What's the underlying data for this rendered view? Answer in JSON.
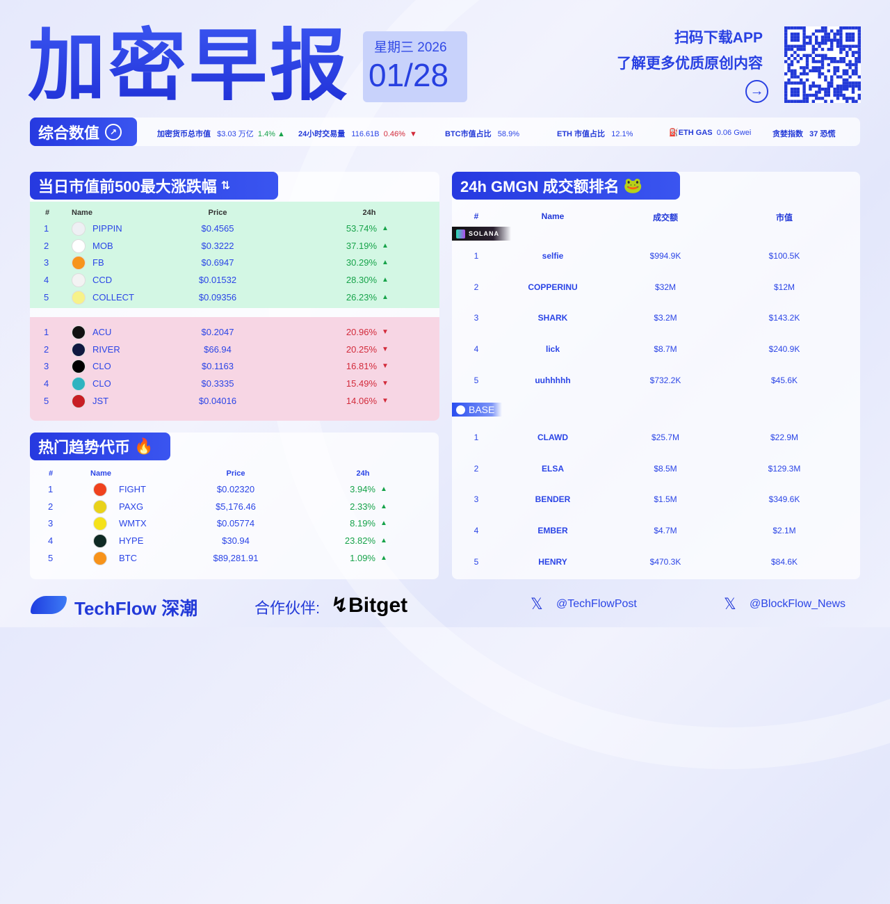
{
  "header": {
    "title": "加密早报",
    "weekday_year": "星期三 2026",
    "date": "01/28",
    "promo_line1": "扫码下载APP",
    "promo_line2": "了解更多优质原创内容"
  },
  "stats": {
    "label": "综合数值",
    "items": [
      {
        "label": "加密货币总市值",
        "value": "$3.03 万亿",
        "change": "1.4%",
        "dir": "up"
      },
      {
        "label": "24小时交易量",
        "value": "116.61B",
        "change": "0.46%",
        "dir": "down"
      },
      {
        "label": "BTC市值占比",
        "value": "58.9%"
      },
      {
        "label": "ETH 市值占比",
        "value": "12.1%"
      },
      {
        "label": "ETH GAS",
        "value": "0.06 Gwei"
      },
      {
        "label": "贪婪指数",
        "value": "37 恐慌"
      }
    ]
  },
  "movers": {
    "title": "当日市值前500最大涨跌幅",
    "headers": [
      "#",
      "Name",
      "Price",
      "24h"
    ],
    "gainers": [
      {
        "rank": "1",
        "name": "PIPPIN",
        "price": "$0.4565",
        "change": "53.74%",
        "icon_color": "#eef0f4"
      },
      {
        "rank": "2",
        "name": "MOB",
        "price": "$0.3222",
        "change": "37.19%",
        "icon_color": "#ffffff"
      },
      {
        "rank": "3",
        "name": "FB",
        "price": "$0.6947",
        "change": "30.29%",
        "icon_color": "#f7941d"
      },
      {
        "rank": "4",
        "name": "CCD",
        "price": "$0.01532",
        "change": "28.30%",
        "icon_color": "#f3f3f3"
      },
      {
        "rank": "5",
        "name": "COLLECT",
        "price": "$0.09356",
        "change": "26.23%",
        "icon_color": "#f7f28a"
      }
    ],
    "losers": [
      {
        "rank": "1",
        "name": "ACU",
        "price": "$0.2047",
        "change": "20.96%",
        "icon_color": "#111111"
      },
      {
        "rank": "2",
        "name": "RIVER",
        "price": "$66.94",
        "change": "20.25%",
        "icon_color": "#101840"
      },
      {
        "rank": "3",
        "name": "CLO",
        "price": "$0.1163",
        "change": "16.81%",
        "icon_color": "#000000"
      },
      {
        "rank": "4",
        "name": "CLO",
        "price": "$0.3335",
        "change": "15.49%",
        "icon_color": "#2fb3c0"
      },
      {
        "rank": "5",
        "name": "JST",
        "price": "$0.04016",
        "change": "14.06%",
        "icon_color": "#c81e24"
      }
    ]
  },
  "trending": {
    "title": "热门趋势代币",
    "headers": [
      "#",
      "Name",
      "Price",
      "24h"
    ],
    "rows": [
      {
        "rank": "1",
        "name": "FIGHT",
        "price": "$0.02320",
        "change": "3.94%",
        "icon_color": "#f0421e"
      },
      {
        "rank": "2",
        "name": "PAXG",
        "price": "$5,176.46",
        "change": "2.33%",
        "icon_color": "#e9d21a"
      },
      {
        "rank": "3",
        "name": "WMTX",
        "price": "$0.05774",
        "change": "8.19%",
        "icon_color": "#f5e21a"
      },
      {
        "rank": "4",
        "name": "HYPE",
        "price": "$30.94",
        "change": "23.82%",
        "icon_color": "#0f2a24"
      },
      {
        "rank": "5",
        "name": "BTC",
        "price": "$89,281.91",
        "change": "1.09%",
        "icon_color": "#f7931a"
      }
    ]
  },
  "gmgn": {
    "title": "24h GMGN 成交额排名",
    "headers": [
      "#",
      "Name",
      "成交额",
      "市值"
    ],
    "chains": [
      {
        "label": "SOLANA",
        "rows": [
          {
            "rank": "1",
            "name": "selfie",
            "volume": "$994.9K",
            "mcap": "$100.5K"
          },
          {
            "rank": "2",
            "name": "COPPERINU",
            "volume": "$32M",
            "mcap": "$12M"
          },
          {
            "rank": "3",
            "name": "SHARK",
            "volume": "$3.2M",
            "mcap": "$143.2K"
          },
          {
            "rank": "4",
            "name": "lick",
            "volume": "$8.7M",
            "mcap": "$240.9K"
          },
          {
            "rank": "5",
            "name": "uuhhhhh",
            "volume": "$732.2K",
            "mcap": "$45.6K"
          }
        ]
      },
      {
        "label": "BASE",
        "rows": [
          {
            "rank": "1",
            "name": "CLAWD",
            "volume": "$25.7M",
            "mcap": "$22.9M"
          },
          {
            "rank": "2",
            "name": "ELSA",
            "volume": "$8.5M",
            "mcap": "$129.3M"
          },
          {
            "rank": "3",
            "name": "BENDER",
            "volume": "$1.5M",
            "mcap": "$349.6K"
          },
          {
            "rank": "4",
            "name": "EMBER",
            "volume": "$4.7M",
            "mcap": "$2.1M"
          },
          {
            "rank": "5",
            "name": "HENRY",
            "volume": "$470.3K",
            "mcap": "$84.6K"
          }
        ]
      }
    ]
  },
  "footer": {
    "brand": "TechFlow 深潮",
    "partner_label": "合作伙伴:",
    "partner": "Bitget",
    "x_handle1": "@TechFlowPost",
    "x_handle2": "@BlockFlow_News"
  },
  "colors": {
    "accent": "#2b45e6",
    "up": "#17a34a",
    "down": "#d22a3a",
    "gainers_bg": "#d3f7e4",
    "losers_bg": "#f7d6e4"
  }
}
